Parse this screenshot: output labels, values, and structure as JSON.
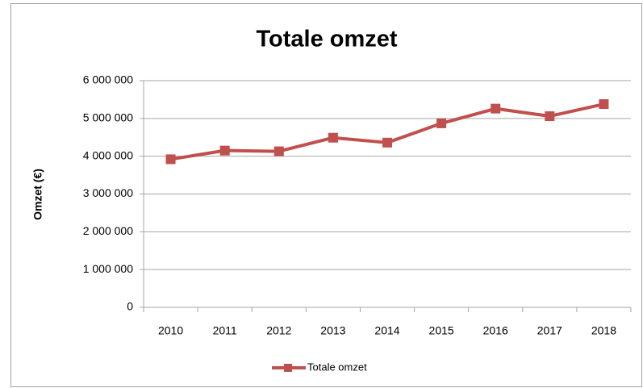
{
  "chart_data": {
    "type": "line",
    "title": "Totale omzet",
    "ylabel": "Omzet (€)",
    "categories": [
      "2010",
      "2011",
      "2012",
      "2013",
      "2014",
      "2015",
      "2016",
      "2017",
      "2018"
    ],
    "series": [
      {
        "name": "Totale omzet",
        "color": "#c0504d",
        "values": [
          3920000,
          4150000,
          4130000,
          4490000,
          4360000,
          4870000,
          5260000,
          5060000,
          5380000
        ]
      }
    ],
    "ylim": [
      0,
      6000000
    ],
    "yticks": [
      0,
      {
        "value": 1000000,
        "label": "1 000 000"
      },
      {
        "value": 2000000,
        "label": "2 000 000"
      },
      {
        "value": 3000000,
        "label": "3 000 000"
      },
      {
        "value": 4000000,
        "label": "4 000 000"
      },
      {
        "value": 5000000,
        "label": "5 000 000"
      },
      {
        "value": 6000000,
        "label": "6 000 000"
      }
    ],
    "grid": true,
    "legend": "bottom"
  }
}
